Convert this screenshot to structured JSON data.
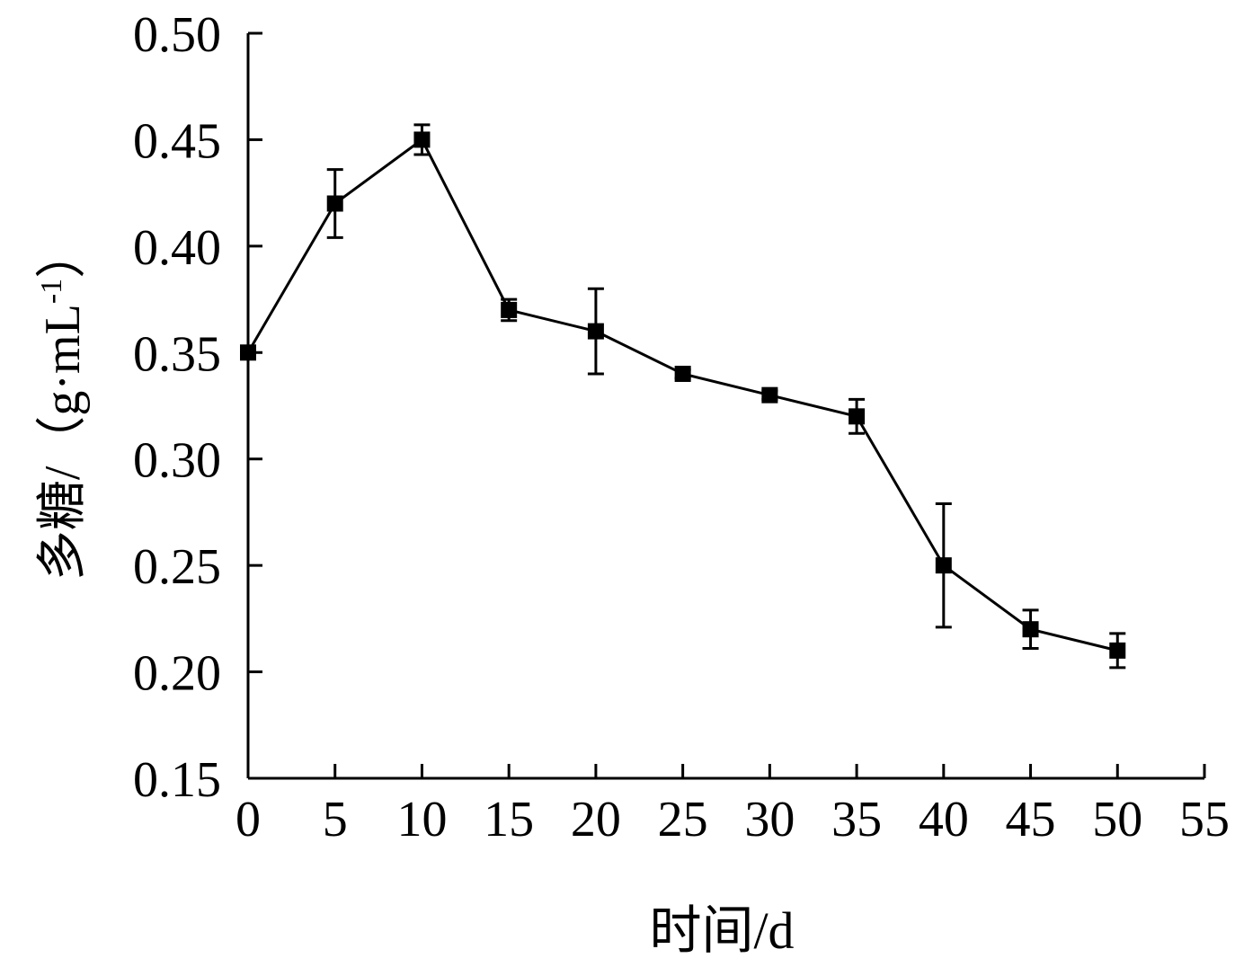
{
  "chart_data": {
    "type": "line",
    "title": "",
    "xlabel": "时间/d",
    "ylabel": "多糖/（g·mL",
    "ylabel_sup": "-1",
    "ylabel_end": "）",
    "xlim": [
      0,
      55
    ],
    "ylim": [
      0.15,
      0.5
    ],
    "xticks": [
      "0",
      "5",
      "10",
      "15",
      "20",
      "25",
      "30",
      "35",
      "40",
      "45",
      "50",
      "55"
    ],
    "yticks": [
      "0.15",
      "0.20",
      "0.25",
      "0.30",
      "0.35",
      "0.40",
      "0.45",
      "0.50"
    ],
    "grid": false,
    "series": [
      {
        "name": "多糖",
        "marker": "square",
        "color": "#000000",
        "x": [
          0,
          5,
          10,
          15,
          20,
          25,
          30,
          35,
          40,
          45,
          50
        ],
        "y": [
          0.35,
          0.42,
          0.45,
          0.37,
          0.36,
          0.34,
          0.33,
          0.32,
          0.25,
          0.22,
          0.21
        ],
        "error": [
          0.002,
          0.016,
          0.007,
          0.005,
          0.02,
          0.002,
          0.002,
          0.008,
          0.029,
          0.009,
          0.008
        ]
      }
    ]
  }
}
